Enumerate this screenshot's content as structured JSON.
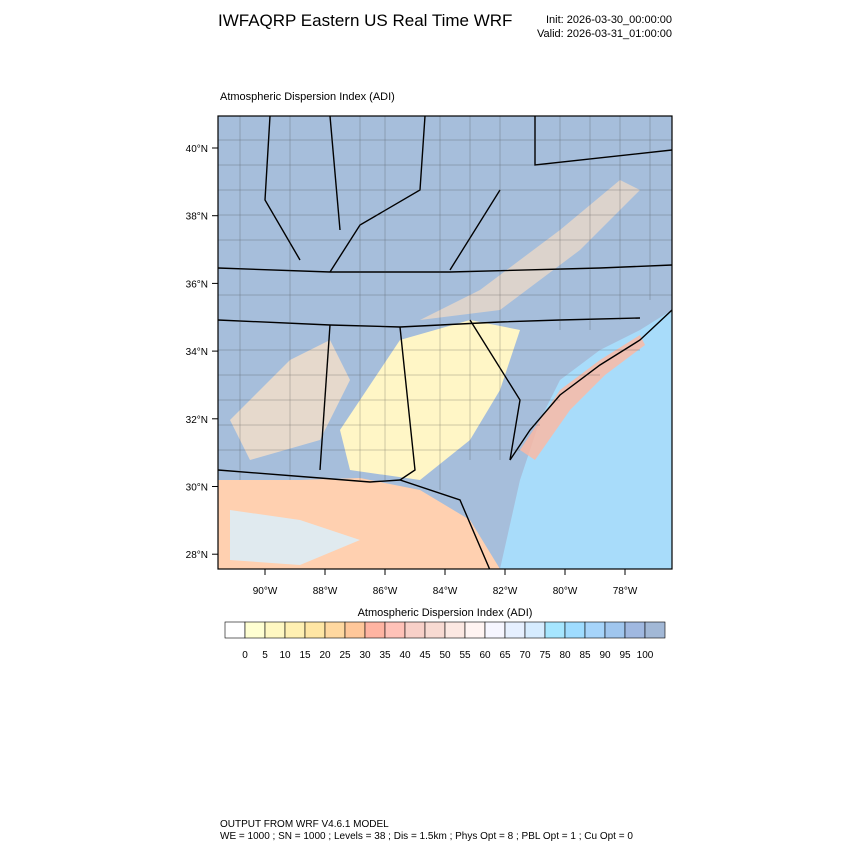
{
  "header": {
    "title": "IWFAQRP Eastern US Real Time WRF",
    "init": "Init: 2026-03-30_00:00:00",
    "valid": "Valid: 2026-03-31_01:00:00"
  },
  "map": {
    "subtitle": "Atmospheric Dispersion Index   (ADI)",
    "lat_labels": [
      "40°N",
      "38°N",
      "36°N",
      "34°N",
      "32°N",
      "30°N",
      "28°N"
    ],
    "lon_labels": [
      "90°W",
      "88°W",
      "86°W",
      "84°W",
      "82°W",
      "80°W",
      "78°W"
    ]
  },
  "colorbar": {
    "title": "Atmospheric Dispersion Index  (ADI)",
    "levels": [
      "0",
      "5",
      "10",
      "15",
      "20",
      "25",
      "30",
      "35",
      "40",
      "45",
      "50",
      "55",
      "60",
      "65",
      "70",
      "75",
      "80",
      "85",
      "90",
      "95",
      "100"
    ],
    "colors": [
      "#ffffff",
      "#ffffd2",
      "#fff8c2",
      "#fff0b2",
      "#ffe6a4",
      "#ffd8a0",
      "#ffc79a",
      "#ffb4a2",
      "#ffc2b8",
      "#f8d0c8",
      "#f8dad2",
      "#fce8e2",
      "#fff4f2",
      "#f6f6ff",
      "#e6f0ff",
      "#d6ecff",
      "#a6e6ff",
      "#9fdcff",
      "#a6d4fa",
      "#a0c6ee",
      "#a0b8e0",
      "#a2b8d6"
    ]
  },
  "footer": {
    "line1": "OUTPUT FROM WRF V4.6.1 MODEL",
    "line2": "WE = 1000 ; SN = 1000 ; Levels = 38 ; Dis = 1.5km ; Phys Opt = 8 ; PBL Opt = 1 ; Cu Opt = 0"
  }
}
